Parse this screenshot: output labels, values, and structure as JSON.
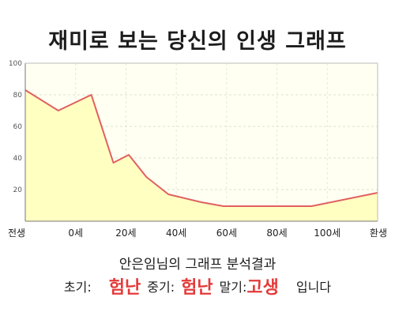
{
  "title": "재미로 보는 당신의 인생 그래프",
  "chart_data": {
    "type": "area",
    "x_labels": [
      "전생",
      "0세",
      "20세",
      "40세",
      "60세",
      "80세",
      "100세",
      "환생"
    ],
    "points": [
      {
        "x": -30,
        "y": 83
      },
      {
        "x": -15,
        "y": 70
      },
      {
        "x": 0,
        "y": 80
      },
      {
        "x": 10,
        "y": 37
      },
      {
        "x": 17,
        "y": 42
      },
      {
        "x": 25,
        "y": 28
      },
      {
        "x": 35,
        "y": 17
      },
      {
        "x": 50,
        "y": 12
      },
      {
        "x": 60,
        "y": 9.5
      },
      {
        "x": 75,
        "y": 9.5
      },
      {
        "x": 100,
        "y": 9.5
      },
      {
        "x": 130,
        "y": 18
      }
    ],
    "y_ticks": [
      20,
      40,
      60,
      80,
      100
    ],
    "ylim": [
      0,
      100
    ],
    "grid": true,
    "line_color": "#e06060",
    "fill_color": "#ffffc2"
  },
  "summary": {
    "title": "안은임님의 그래프 분석결과",
    "early_label": "초기:",
    "early_value": "험난",
    "middle_label": "중기:",
    "middle_value": "험난",
    "late_label": "말기:",
    "late_value": "고생",
    "ending": "입니다"
  },
  "colors": {
    "emphasis": "#e43a3a"
  }
}
